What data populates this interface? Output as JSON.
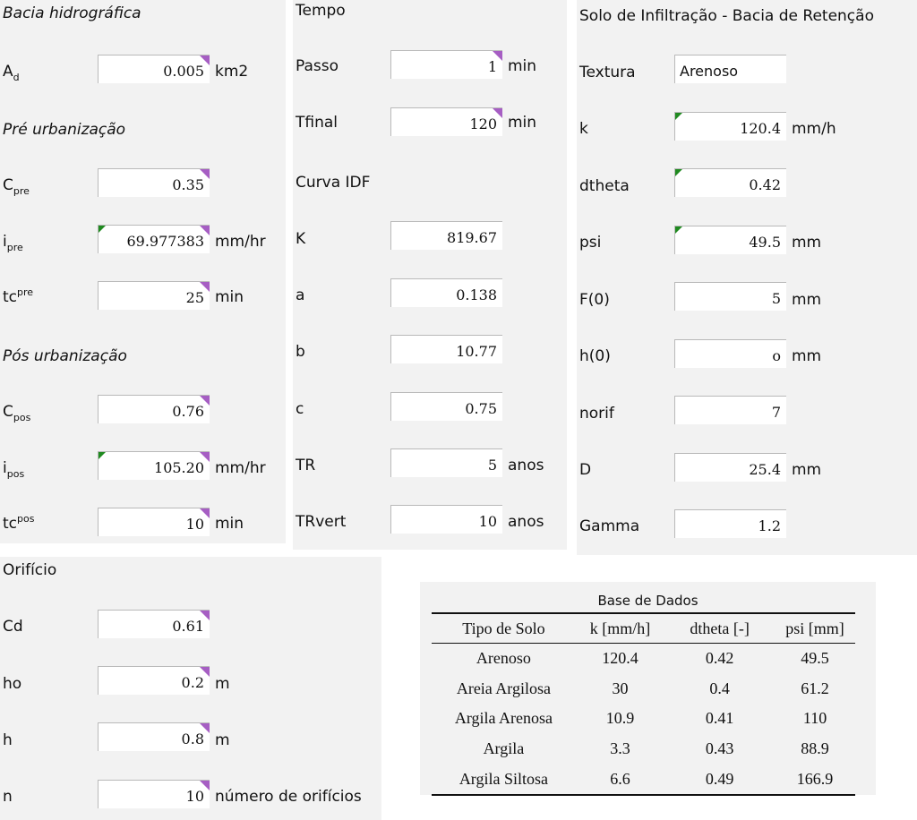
{
  "bacia": {
    "title": "Bacia hidrográfica",
    "ad": {
      "label": "A",
      "sub": "d",
      "value": "0.005",
      "unit": "km2"
    },
    "pre": {
      "title": "Pré urbanização",
      "c": {
        "label": "C",
        "sub": "pre",
        "value": "0.35"
      },
      "i": {
        "label": "i",
        "sub": "pre",
        "value": "69.977383",
        "unit": "mm/hr"
      },
      "tc": {
        "label": "tc",
        "sup": "pre",
        "value": "25",
        "unit": "min"
      }
    },
    "pos": {
      "title": "Pós urbanização",
      "c": {
        "label": "C",
        "sub": "pos",
        "value": "0.76"
      },
      "i": {
        "label": "i",
        "sub": "pos",
        "value": "105.20",
        "unit": "mm/hr"
      },
      "tc": {
        "label": "tc",
        "sup": "pos",
        "value": "10",
        "unit": "min"
      }
    }
  },
  "tempo": {
    "title": "Tempo",
    "passo": {
      "label": "Passo",
      "value": "1",
      "unit": "min"
    },
    "tfinal": {
      "label": "Tfinal",
      "value": "120",
      "unit": "min"
    },
    "idf_title": "Curva IDF",
    "k": {
      "label": "K",
      "value": "819.67"
    },
    "a": {
      "label": "a",
      "value": "0.138"
    },
    "b": {
      "label": "b",
      "value": "10.77"
    },
    "c": {
      "label": "c",
      "value": "0.75"
    },
    "tr": {
      "label": "TR",
      "value": "5",
      "unit": "anos"
    },
    "trvert": {
      "label": "TRvert",
      "value": "10",
      "unit": "anos"
    }
  },
  "solo": {
    "title": "Solo de Infiltração - Bacia de Retenção",
    "textura": {
      "label": "Textura",
      "value": "Arenoso"
    },
    "k": {
      "label": "k",
      "value": "120.4",
      "unit": "mm/h"
    },
    "dtheta": {
      "label": "dtheta",
      "value": "0.42"
    },
    "psi": {
      "label": "psi",
      "value": "49.5",
      "unit": "mm"
    },
    "f0": {
      "label": "F(0)",
      "value": "5",
      "unit": "mm"
    },
    "h0": {
      "label": "h(0)",
      "value": "o",
      "unit": "mm"
    },
    "norif": {
      "label": "norif",
      "value": "7"
    },
    "d": {
      "label": "D",
      "value": "25.4",
      "unit": "mm"
    },
    "gamma": {
      "label": "Gamma",
      "value": "1.2"
    }
  },
  "orificio": {
    "title": "Orifício",
    "cd": {
      "label": "Cd",
      "value": "0.61"
    },
    "ho": {
      "label": "ho",
      "value": "0.2",
      "unit": "m"
    },
    "h": {
      "label": "h",
      "value": "0.8",
      "unit": "m"
    },
    "n": {
      "label": "n",
      "value": "10",
      "unit": "número de orifícios"
    }
  },
  "database": {
    "title": "Base de Dados",
    "headers": [
      "Tipo de Solo",
      "k [mm/h]",
      "dtheta [-]",
      "psi [mm]"
    ],
    "rows": [
      [
        "Arenoso",
        "120.4",
        "0.42",
        "49.5"
      ],
      [
        "Areia Argilosa",
        "30",
        "0.4",
        "61.2"
      ],
      [
        "Argila Arenosa",
        "10.9",
        "0.41",
        "110"
      ],
      [
        "Argila",
        "3.3",
        "0.43",
        "88.9"
      ],
      [
        "Argila Siltosa",
        "6.6",
        "0.49",
        "166.9"
      ]
    ]
  },
  "colors": {
    "panel": "#f2f2f2",
    "comment_marker": "#a65ec3",
    "error_marker": "#208a20"
  }
}
